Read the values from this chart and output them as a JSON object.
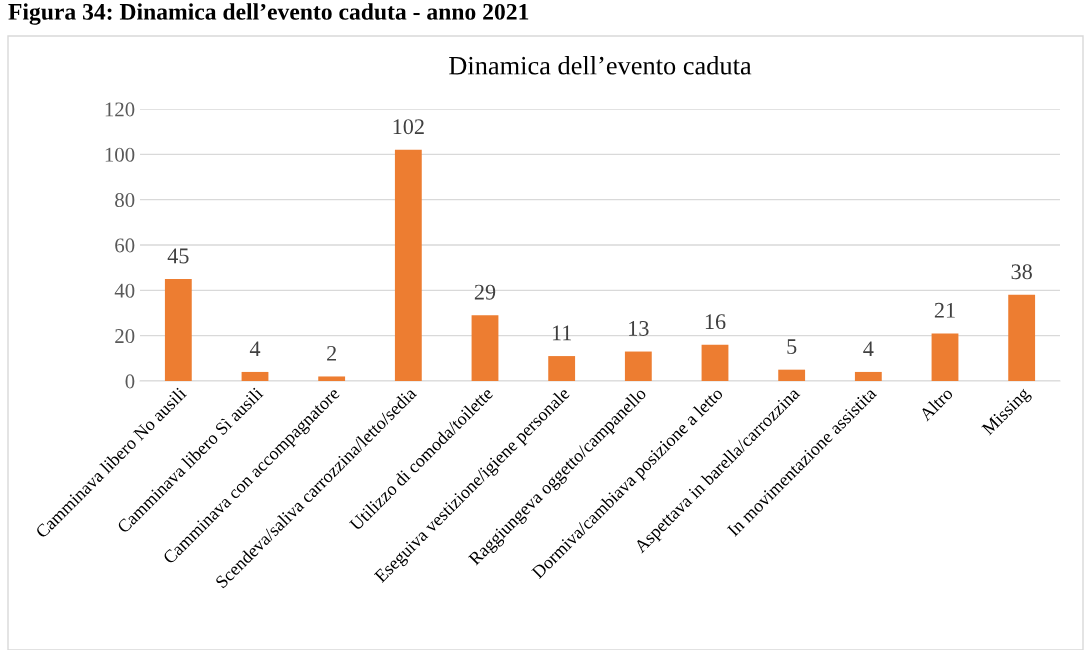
{
  "chart_data": {
    "type": "bar",
    "title": "Dinamica dell’evento caduta",
    "annotations": [
      "Figura 34: Dinamica dell’evento caduta - anno 2021"
    ],
    "categories": [
      "Camminava libero No ausili",
      "Camminava libero Sì ausili",
      "Camminava con accompagnatore",
      "Scendeva/saliva carrozzina/letto/sedia",
      "Utilizzo di comoda/toilette",
      "Eseguiva vestizione/igiene personale",
      "Raggiungeva oggetto/campanello",
      "Dormiva/cambiava posizione a letto",
      "Aspettava in barella/carrozzina",
      "In movimentazione assistita",
      "Altro",
      "Missing"
    ],
    "values": [
      45,
      4,
      2,
      102,
      29,
      11,
      13,
      16,
      5,
      4,
      21,
      38
    ],
    "color": "#ed7d31",
    "ylim": [
      0,
      120
    ],
    "yticks": [
      0,
      20,
      40,
      60,
      80,
      100,
      120
    ],
    "grid": "y",
    "data_labels": true
  }
}
